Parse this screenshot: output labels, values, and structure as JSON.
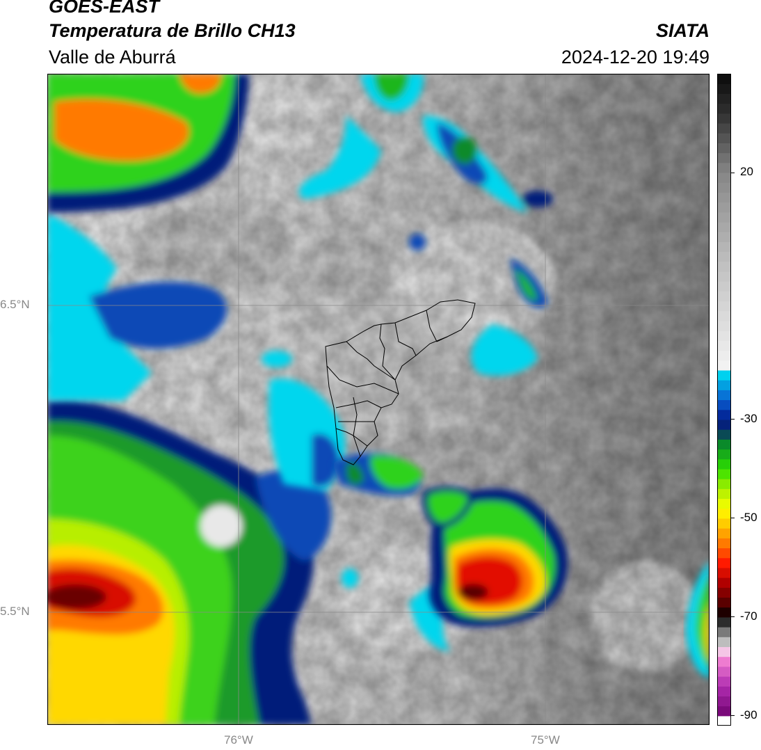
{
  "header": {
    "title": "GOES-EAST",
    "subtitle": "Temperatura de Brillo CH13",
    "region": "Valle de Aburrá",
    "brand": "SIATA",
    "datetime": "2024-12-20 19:49"
  },
  "axes": {
    "lat_labels": [
      "6.5°N",
      "5.5°N"
    ],
    "lon_labels": [
      "76°W",
      "75°W"
    ],
    "lat_values": [
      6.5,
      5.5
    ],
    "lon_values": [
      -76,
      -75
    ],
    "lat_range": [
      5.14,
      7.25
    ],
    "lon_range": [
      -76.62,
      -74.45
    ]
  },
  "colorbar": {
    "ticks": [
      "20",
      "-30",
      "-50",
      "-70",
      "-90"
    ],
    "tick_values": [
      20,
      -30,
      -50,
      -70,
      -90
    ],
    "range": [
      -92,
      40
    ],
    "stops": [
      {
        "v": -92,
        "c": "#ffffff"
      },
      {
        "v": -89.5,
        "c": "#ffffff"
      },
      {
        "v": -89,
        "c": "#7b0a7b"
      },
      {
        "v": -84,
        "c": "#b02cb0"
      },
      {
        "v": -79,
        "c": "#ee7cd0"
      },
      {
        "v": -77,
        "c": "#f5c6e6"
      },
      {
        "v": -75,
        "c": "#bdbdbd"
      },
      {
        "v": -72,
        "c": "#585858"
      },
      {
        "v": -70,
        "c": "#000000"
      },
      {
        "v": -67,
        "c": "#5a0000"
      },
      {
        "v": -63,
        "c": "#b00000"
      },
      {
        "v": -59,
        "c": "#ff1a00"
      },
      {
        "v": -55,
        "c": "#ff7a00"
      },
      {
        "v": -51,
        "c": "#ffcc00"
      },
      {
        "v": -48,
        "c": "#ffff00"
      },
      {
        "v": -44,
        "c": "#a8ee00"
      },
      {
        "v": -40,
        "c": "#2ee000"
      },
      {
        "v": -35,
        "c": "#0a8a2a"
      },
      {
        "v": -32,
        "c": "#0a2a6a"
      },
      {
        "v": -30,
        "c": "#001a8a"
      },
      {
        "v": -26,
        "c": "#0a5ed0"
      },
      {
        "v": -22,
        "c": "#00b6e6"
      },
      {
        "v": -20.2,
        "c": "#00e6f6"
      },
      {
        "v": -20,
        "c": "#f4f4f4"
      },
      {
        "v": 0,
        "c": "#c4c4c4"
      },
      {
        "v": 20,
        "c": "#868686"
      },
      {
        "v": 32,
        "c": "#303030"
      },
      {
        "v": 40,
        "c": "#0a0a0a"
      }
    ]
  },
  "map_colors": {
    "gray_light": "#efefef",
    "gray_mid": "#c8c8c8",
    "gray_dark": "#8e8e8e",
    "cyan": "#00d6ee",
    "blue": "#0a4ab6",
    "navy": "#001a7a",
    "green": "#24c81a",
    "lime": "#a8ee00",
    "yellow": "#ffd800",
    "orange": "#ff7a00",
    "red": "#e21000",
    "darkred": "#6a0000",
    "boundary": "#000000",
    "grid": "#8a8a8a"
  }
}
